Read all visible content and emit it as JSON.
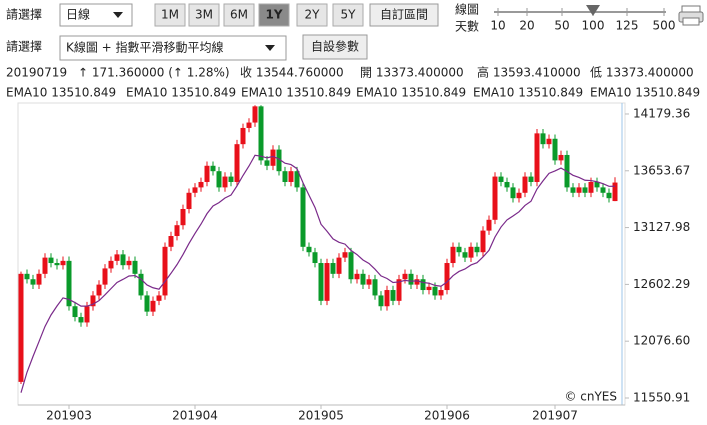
{
  "toolbar": {
    "label1": "請選擇",
    "period": "日線",
    "ranges": [
      "1M",
      "3M",
      "6M",
      "1Y",
      "2Y",
      "5Y"
    ],
    "active_range_index": 3,
    "custom": "自訂區間",
    "slider_label": [
      "線圖",
      "天數"
    ],
    "slider_ticks": [
      10,
      20,
      50,
      100,
      125,
      500
    ],
    "slider_value_index": 3,
    "label2": "請選擇",
    "chart_kind": "K線圖 + 指數平滑移動平均線",
    "settings": "自設參數"
  },
  "info": [
    "20190719",
    "↑ 171.360000 (↑ 1.28%)",
    "收 13544.760000",
    "開 13373.400000",
    "高 13593.410000",
    "低 13373.400000"
  ],
  "ema_legend": [
    {
      "text": "EMA10 13510.849",
      "color": "#1f7fd6"
    },
    {
      "text": "EMA10 13510.849",
      "color": "#e0301e"
    },
    {
      "text": "EMA10 13510.849",
      "color": "#f0a000"
    },
    {
      "text": "EMA10 13510.849",
      "color": "#1e9a2a"
    },
    {
      "text": "EMA10 13510.849",
      "color": "#5a5ad0"
    },
    {
      "text": "EMA10 13510.849",
      "color": "#a0309a"
    }
  ],
  "watermark": "© cnYES",
  "chart_data": {
    "type": "candlestick",
    "up_color": "#e8101a",
    "down_color": "#0a9a2a",
    "ema_color": "#7a2a8a",
    "categories": [
      null,
      null,
      null,
      null,
      null,
      null,
      null,
      null,
      "201903",
      null,
      null,
      null,
      null,
      null,
      null,
      null,
      null,
      null,
      null,
      null,
      null,
      null,
      null,
      null,
      null,
      null,
      null,
      null,
      null,
      "201904",
      null,
      null,
      null,
      null,
      null,
      null,
      null,
      null,
      null,
      null,
      null,
      null,
      null,
      null,
      null,
      null,
      null,
      null,
      null,
      null,
      "201905",
      null,
      null,
      null,
      null,
      null,
      null,
      null,
      null,
      null,
      null,
      null,
      null,
      null,
      null,
      null,
      null,
      null,
      null,
      null,
      null,
      "201906",
      null,
      null,
      null,
      null,
      null,
      null,
      null,
      null,
      null,
      null,
      null,
      null,
      null,
      null,
      null,
      null,
      null,
      "201907",
      null,
      null,
      null,
      null,
      null,
      null,
      null,
      null,
      null,
      null
    ],
    "open": [
      11700,
      12700,
      12650,
      12600,
      12700,
      12850,
      12800,
      12780,
      12820,
      12400,
      12300,
      12250,
      12400,
      12500,
      12600,
      12750,
      12820,
      12880,
      12780,
      12820,
      12700,
      12500,
      12350,
      12450,
      12500,
      12950,
      13050,
      13150,
      13300,
      13450,
      13500,
      13550,
      13700,
      13650,
      13500,
      13600,
      13550,
      13900,
      14050,
      14100,
      14250,
      13750,
      13700,
      13850,
      13650,
      13550,
      13650,
      13500,
      12950,
      12900,
      12800,
      12450,
      12800,
      12700,
      12850,
      12900,
      12650,
      12700,
      12600,
      12650,
      12500,
      12400,
      12550,
      12450,
      12650,
      12700,
      12600,
      12650,
      12550,
      12580,
      12500,
      12550,
      12800,
      12950,
      12900,
      12850,
      12950,
      12900,
      13100,
      13200,
      13600,
      13550,
      13500,
      13400,
      13450,
      13600,
      13550,
      14000,
      13900,
      13950,
      13750,
      13800,
      13500,
      13450,
      13500,
      13450,
      13550,
      13500,
      13450,
      13373.4
    ],
    "high": [
      12720,
      12740,
      12690,
      12740,
      12890,
      12890,
      12840,
      12860,
      12860,
      12440,
      12340,
      12440,
      12540,
      12640,
      12790,
      12860,
      12920,
      12920,
      12860,
      12860,
      12740,
      12540,
      12490,
      12540,
      12990,
      13090,
      13190,
      13340,
      13490,
      13540,
      13590,
      13740,
      13740,
      13690,
      13640,
      13640,
      13940,
      14090,
      14140,
      14260,
      14260,
      13790,
      13890,
      13890,
      13690,
      13690,
      13690,
      13540,
      12990,
      12940,
      12840,
      12840,
      12840,
      12890,
      12940,
      12940,
      12740,
      12740,
      12690,
      12690,
      12540,
      12590,
      12590,
      12690,
      12740,
      12740,
      12690,
      12690,
      12620,
      12620,
      12590,
      12840,
      12990,
      12990,
      12940,
      12990,
      12990,
      13140,
      13240,
      13640,
      13640,
      13590,
      13540,
      13490,
      13640,
      13640,
      14040,
      14040,
      13990,
      13990,
      13840,
      13840,
      13540,
      13540,
      13540,
      13590,
      13590,
      13540,
      13490,
      13593.41
    ],
    "low": [
      11680,
      12610,
      12560,
      12560,
      12660,
      12760,
      12740,
      12740,
      12360,
      12260,
      12210,
      12210,
      12360,
      12460,
      12560,
      12710,
      12780,
      12740,
      12740,
      12660,
      12460,
      12310,
      12310,
      12410,
      12460,
      12910,
      13010,
      13110,
      13260,
      13410,
      13460,
      13510,
      13610,
      13460,
      13460,
      13510,
      13510,
      13860,
      14010,
      14060,
      13710,
      13660,
      13660,
      13610,
      13510,
      13510,
      13460,
      12910,
      12860,
      12760,
      12410,
      12410,
      12660,
      12660,
      12810,
      12610,
      12610,
      12560,
      12560,
      12460,
      12360,
      12360,
      12410,
      12410,
      12610,
      12560,
      12560,
      12510,
      12510,
      12460,
      12460,
      12510,
      12760,
      12860,
      12810,
      12810,
      12860,
      12860,
      13060,
      13160,
      13510,
      13460,
      13360,
      13360,
      13410,
      13510,
      13510,
      13860,
      13860,
      13710,
      13710,
      13460,
      13410,
      13410,
      13410,
      13410,
      13460,
      13410,
      13360,
      13373.4
    ],
    "close": [
      12700,
      12650,
      12600,
      12700,
      12850,
      12800,
      12780,
      12820,
      12400,
      12300,
      12250,
      12400,
      12500,
      12600,
      12750,
      12820,
      12880,
      12780,
      12820,
      12700,
      12500,
      12350,
      12450,
      12500,
      12950,
      13050,
      13150,
      13300,
      13450,
      13500,
      13550,
      13700,
      13650,
      13500,
      13600,
      13550,
      13900,
      14050,
      14100,
      14250,
      13750,
      13700,
      13850,
      13650,
      13550,
      13650,
      13500,
      12950,
      12900,
      12800,
      12450,
      12800,
      12700,
      12850,
      12900,
      12650,
      12700,
      12600,
      12650,
      12500,
      12400,
      12550,
      12450,
      12650,
      12700,
      12600,
      12650,
      12550,
      12580,
      12500,
      12550,
      12800,
      12950,
      12900,
      12850,
      12950,
      12900,
      13100,
      13200,
      13600,
      13550,
      13500,
      13400,
      13450,
      13600,
      13550,
      14000,
      13900,
      13950,
      13750,
      13800,
      13500,
      13450,
      13500,
      13450,
      13550,
      13500,
      13450,
      13400,
      13544.76
    ],
    "ema": [
      11600,
      11789,
      11935,
      12073,
      12213,
      12319,
      12402,
      12477,
      12463,
      12434,
      12401,
      12401,
      12419,
      12452,
      12506,
      12563,
      12620,
      12649,
      12680,
      12684,
      12651,
      12597,
      12571,
      12558,
      12629,
      12705,
      12785,
      12878,
      12981,
      13074,
      13160,
      13257,
      13328,
      13359,
      13402,
      13429,
      13514,
      13610,
      13698,
      13797,
      13789,
      13773,
      13787,
      13762,
      13724,
      13711,
      13673,
      13543,
      13427,
      13314,
      13159,
      13094,
      13023,
      12992,
      12975,
      12917,
      12878,
      12828,
      12796,
      12743,
      12681,
      12657,
      12620,
      12625,
      12639,
      12632,
      12635,
      12620,
      12613,
      12593,
      12585,
      12624,
      12683,
      12722,
      12745,
      12782,
      12803,
      12856,
      12918,
      13041,
      13133,
      13199,
      13235,
      13274,
      13333,
      13372,
      13485,
      13560,
      13630,
      13652,
      13679,
      13647,
      13612,
      13592,
      13566,
      13563,
      13552,
      13534,
      13510,
      13510.849
    ],
    "ylim": [
      11486,
      14281
    ],
    "yticks": [
      14179.36,
      13653.67,
      13127.98,
      12602.29,
      {
        "value": 12076.6,
        "label": "12076.60"
      },
      11550.91
    ]
  }
}
